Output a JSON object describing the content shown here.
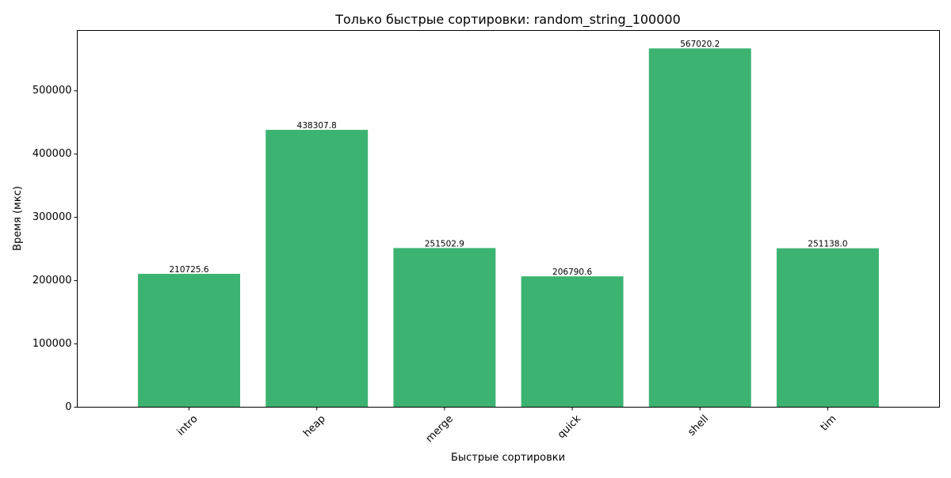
{
  "chart_data": {
    "type": "bar",
    "title": "Только быстрые сортировки: random_string_100000",
    "xlabel": "Быстрые сортировки",
    "ylabel": "Время (мкс)",
    "categories": [
      "intro",
      "heap",
      "merge",
      "quick",
      "shell",
      "tim"
    ],
    "values": [
      210725.6,
      438307.8,
      251502.9,
      206790.6,
      567020.2,
      251138.0
    ],
    "value_labels": [
      "210725.6",
      "438307.8",
      "251502.9",
      "206790.6",
      "567020.2",
      "251138.0"
    ],
    "ylim": [
      0,
      595371
    ],
    "yticks": [
      0,
      100000,
      200000,
      300000,
      400000,
      500000
    ],
    "ytick_labels": [
      "0",
      "100000",
      "200000",
      "300000",
      "400000",
      "500000"
    ],
    "bar_color": "#3cb371",
    "grid": false,
    "legend": "none"
  }
}
